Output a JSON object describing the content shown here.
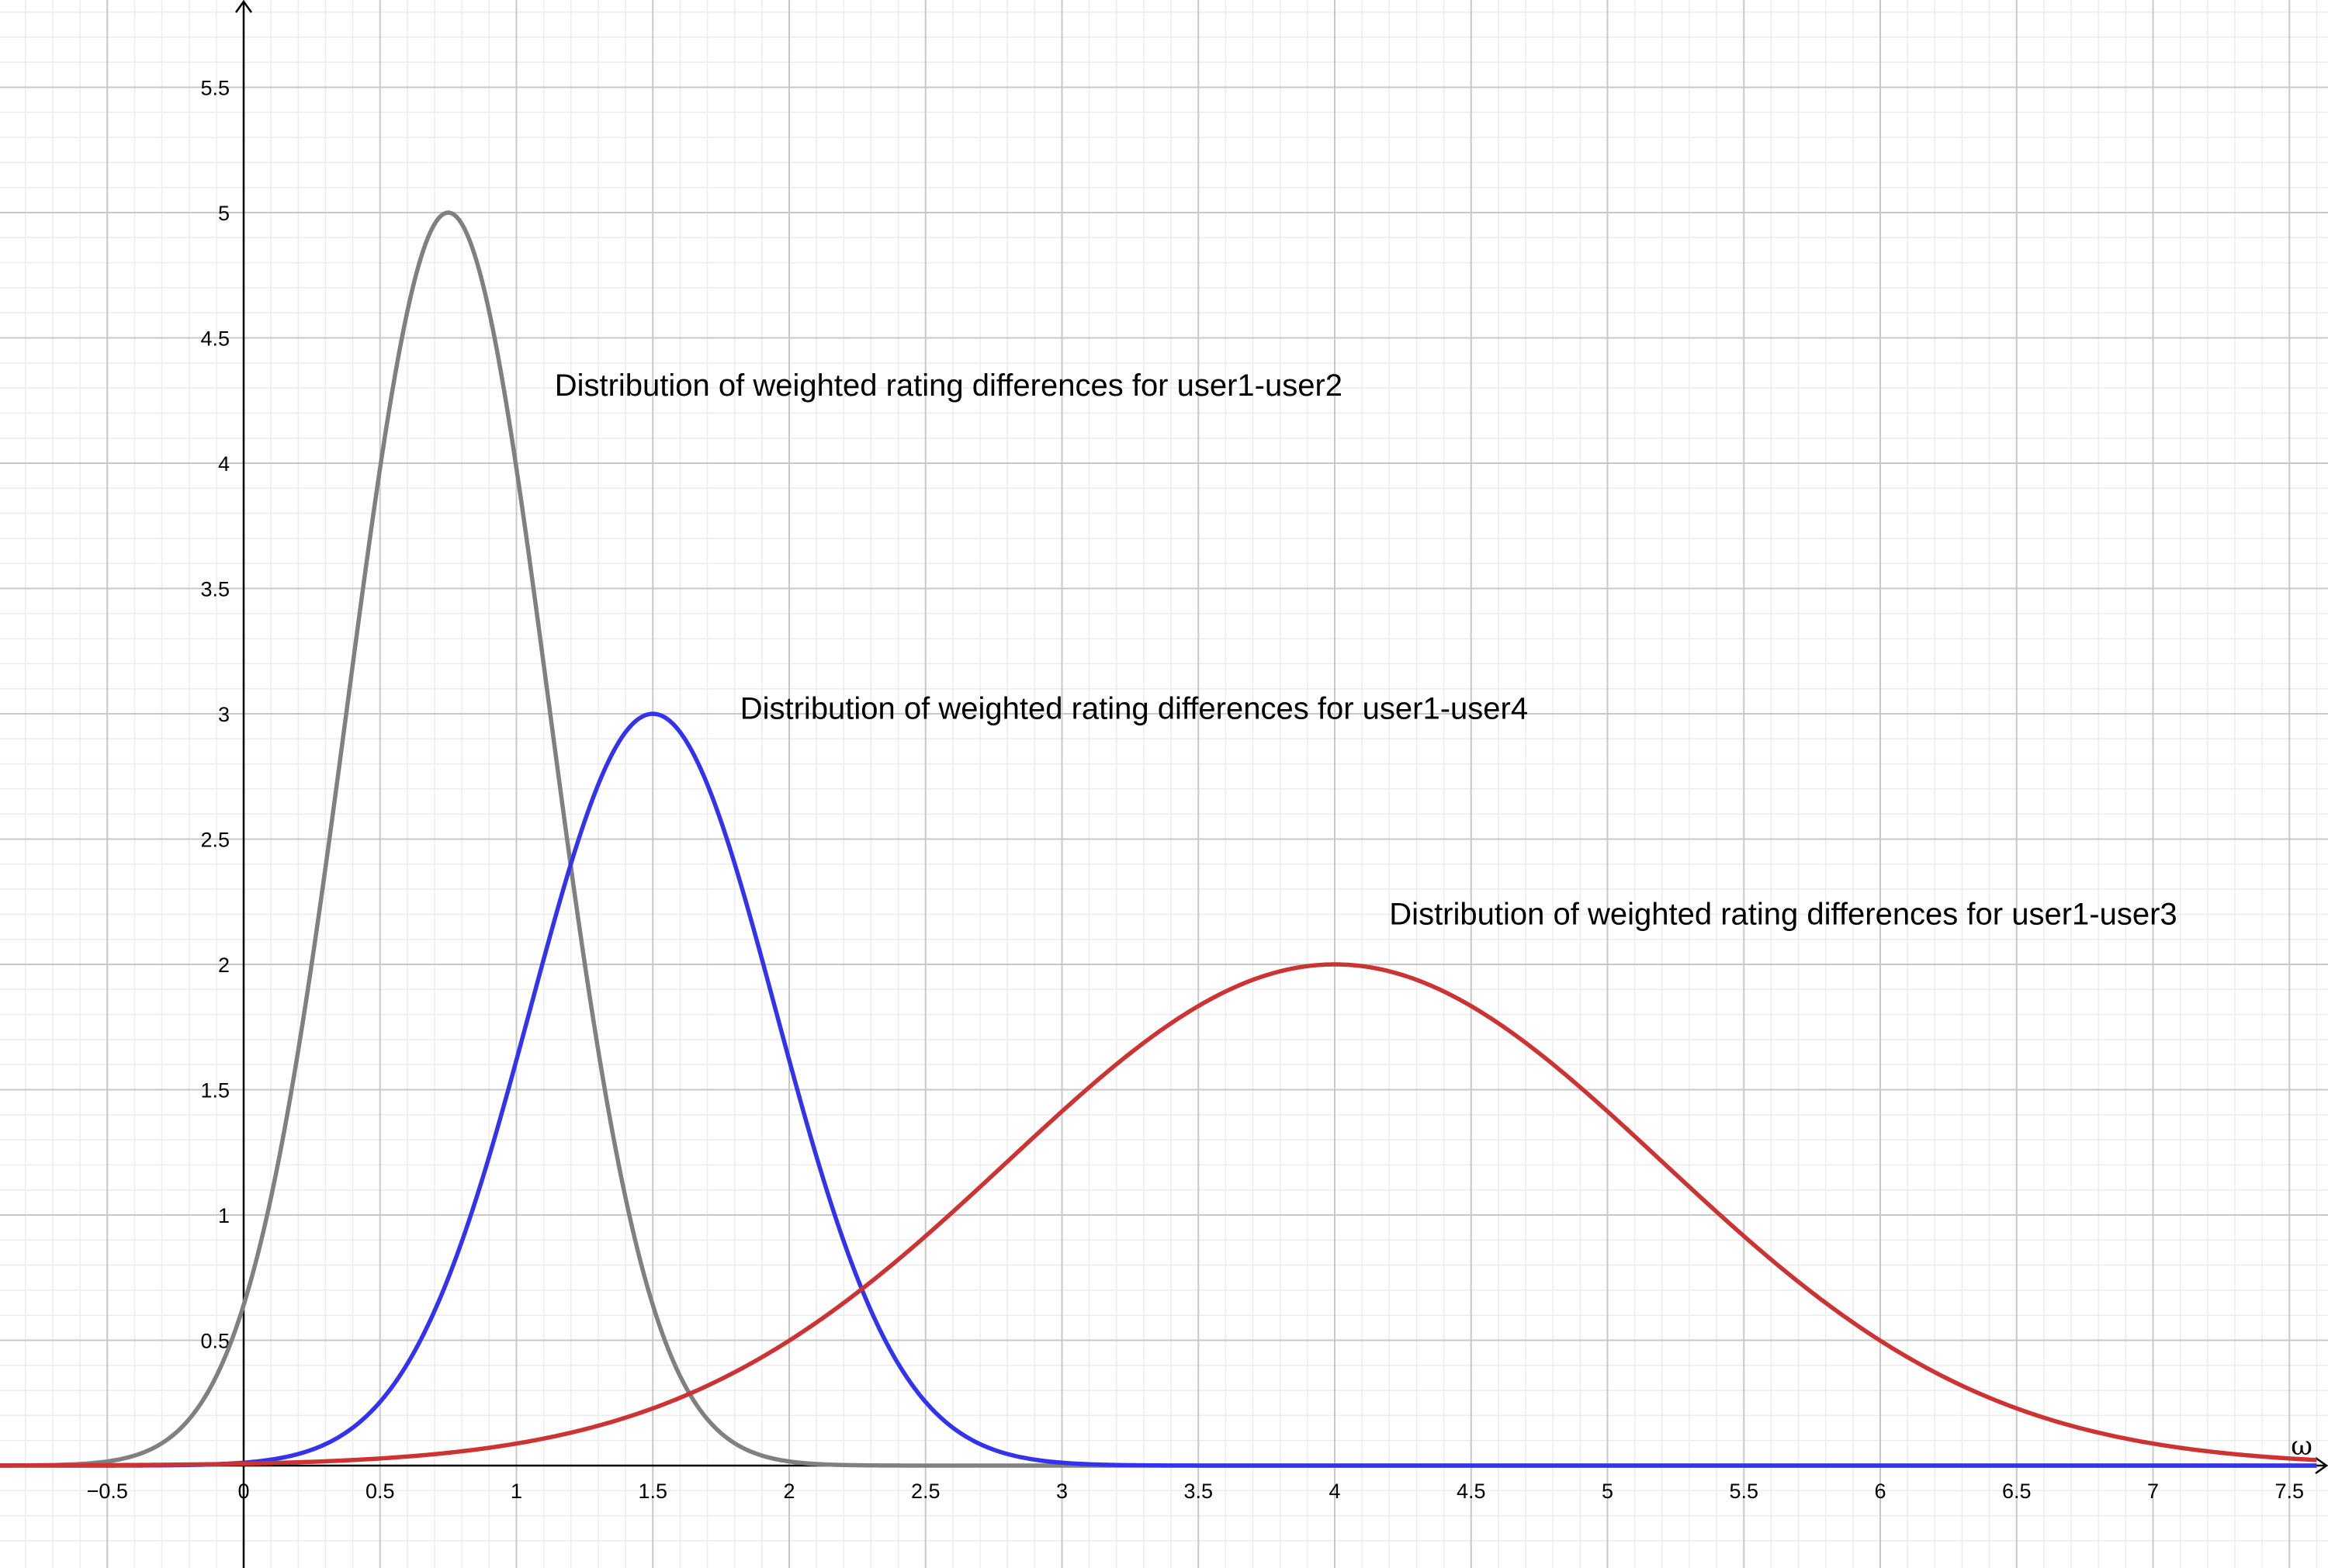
{
  "chart_data": {
    "type": "line",
    "title": "",
    "xlabel": "ω",
    "ylabel": "",
    "xlim": [
      -0.9,
      7.6
    ],
    "ylim": [
      0,
      5.8
    ],
    "grid": true,
    "legend": "none",
    "x_ticks": [
      -0.5,
      0,
      0.5,
      1,
      1.5,
      2,
      2.5,
      3,
      3.5,
      4,
      4.5,
      5,
      5.5,
      6,
      6.5,
      7,
      7.5
    ],
    "x_tick_labels": [
      "−0.5",
      "0",
      "0.5",
      "1",
      "1.5",
      "2",
      "2.5",
      "3",
      "3.5",
      "4",
      "4.5",
      "5",
      "5.5",
      "6",
      "6.5",
      "7",
      "7.5"
    ],
    "y_ticks": [
      0.5,
      1,
      1.5,
      2,
      2.5,
      3,
      3.5,
      4,
      4.5,
      5,
      5.5
    ],
    "y_tick_labels": [
      "0.5",
      "1",
      "1.5",
      "2",
      "2.5",
      "3",
      "3.5",
      "4",
      "4.5",
      "5",
      "5.5"
    ],
    "series": [
      {
        "name": "Distribution of weighted rating differences for user1-user2",
        "color": "#808080",
        "peak_x": 0.75,
        "peak_y": 5,
        "spread": 0.37
      },
      {
        "name": "Distribution of weighted rating differences for user1-user4",
        "color": "#3333ee",
        "peak_x": 1.5,
        "peak_y": 3,
        "spread": 0.45
      },
      {
        "name": "Distribution of weighted rating differences for user1-user3",
        "color": "#cc3333",
        "peak_x": 4,
        "peak_y": 2,
        "spread": 1.2
      }
    ],
    "annotations": [
      {
        "text": "Distribution of weighted rating differences for user1-user2",
        "x": 1.14,
        "y": 4.27
      },
      {
        "text": "Distribution of weighted rating differences for user1-user4",
        "x": 1.82,
        "y": 2.98
      },
      {
        "text": "Distribution of weighted rating differences for user1-user3",
        "x": 4.2,
        "y": 2.16
      }
    ]
  }
}
